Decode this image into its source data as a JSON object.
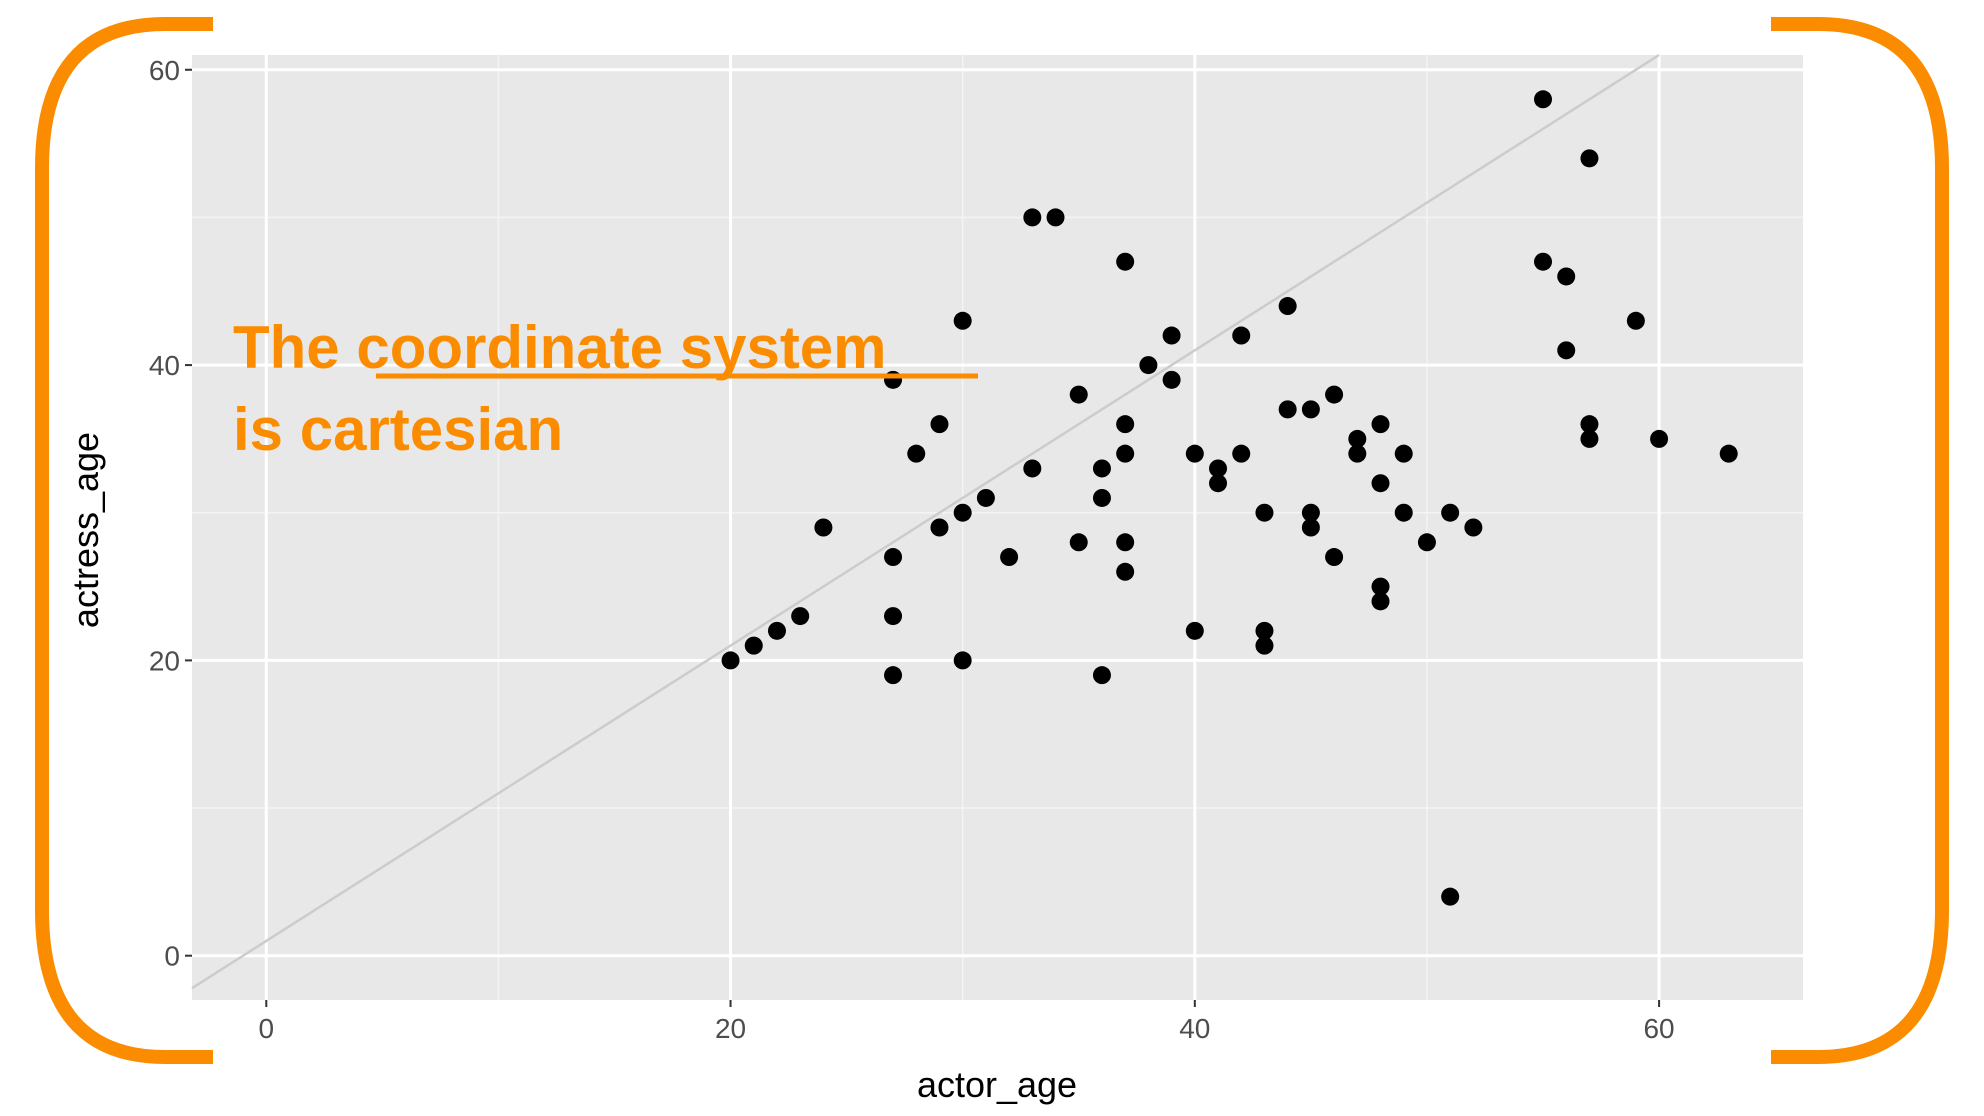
{
  "colors": {
    "panel_background": "#e8e8e8",
    "grid_major": "#ffffff",
    "grid_minor": "#f4f4f4",
    "points": "#000000",
    "reference_line": "#cccccc",
    "accent": "#fb8c00",
    "tick_text": "#4d4d4d"
  },
  "annotation": {
    "prefix": "The ",
    "emphasis": "coordinate system",
    "line2": "is cartesian"
  },
  "chart_data": {
    "type": "scatter",
    "title": "",
    "xlabel": "actor_age",
    "ylabel": "actress_age",
    "xlim": [
      -3.2,
      66.2
    ],
    "ylim": [
      -3,
      61
    ],
    "x_ticks": [
      0,
      20,
      40,
      60
    ],
    "y_ticks": [
      0,
      20,
      40,
      60
    ],
    "x_tick_labels": [
      "0",
      "20",
      "40",
      "60"
    ],
    "y_tick_labels": [
      "0",
      "20",
      "40",
      "60"
    ],
    "grid": true,
    "reference_line": {
      "slope": 1,
      "intercept": 1
    },
    "series": [
      {
        "points": [
          [
            20,
            20
          ],
          [
            21,
            21
          ],
          [
            22,
            22
          ],
          [
            23,
            23
          ],
          [
            24,
            29
          ],
          [
            27,
            39
          ],
          [
            27,
            27
          ],
          [
            27,
            23
          ],
          [
            27,
            19
          ],
          [
            28,
            34
          ],
          [
            29,
            36
          ],
          [
            29,
            29
          ],
          [
            30,
            43
          ],
          [
            30,
            30
          ],
          [
            30,
            20
          ],
          [
            31,
            31
          ],
          [
            32,
            27
          ],
          [
            33,
            50
          ],
          [
            33,
            33
          ],
          [
            34,
            50
          ],
          [
            35,
            38
          ],
          [
            35,
            28
          ],
          [
            36,
            33
          ],
          [
            36,
            31
          ],
          [
            36,
            19
          ],
          [
            37,
            47
          ],
          [
            37,
            36
          ],
          [
            37,
            34
          ],
          [
            37,
            28
          ],
          [
            37,
            26
          ],
          [
            38,
            40
          ],
          [
            39,
            42
          ],
          [
            39,
            39
          ],
          [
            40,
            34
          ],
          [
            40,
            22
          ],
          [
            41,
            33
          ],
          [
            41,
            32
          ],
          [
            42,
            42
          ],
          [
            42,
            34
          ],
          [
            43,
            30
          ],
          [
            43,
            22
          ],
          [
            43,
            21
          ],
          [
            44,
            44
          ],
          [
            44,
            37
          ],
          [
            45,
            37
          ],
          [
            45,
            30
          ],
          [
            45,
            29
          ],
          [
            46,
            38
          ],
          [
            46,
            27
          ],
          [
            47,
            35
          ],
          [
            47,
            34
          ],
          [
            48,
            36
          ],
          [
            48,
            32
          ],
          [
            48,
            25
          ],
          [
            48,
            24
          ],
          [
            49,
            34
          ],
          [
            49,
            30
          ],
          [
            50,
            28
          ],
          [
            51,
            30
          ],
          [
            51,
            4
          ],
          [
            52,
            29
          ],
          [
            55,
            58
          ],
          [
            55,
            47
          ],
          [
            56,
            46
          ],
          [
            56,
            41
          ],
          [
            57,
            54
          ],
          [
            57,
            36
          ],
          [
            57,
            35
          ],
          [
            59,
            43
          ],
          [
            60,
            35
          ],
          [
            63,
            34
          ]
        ]
      }
    ]
  }
}
